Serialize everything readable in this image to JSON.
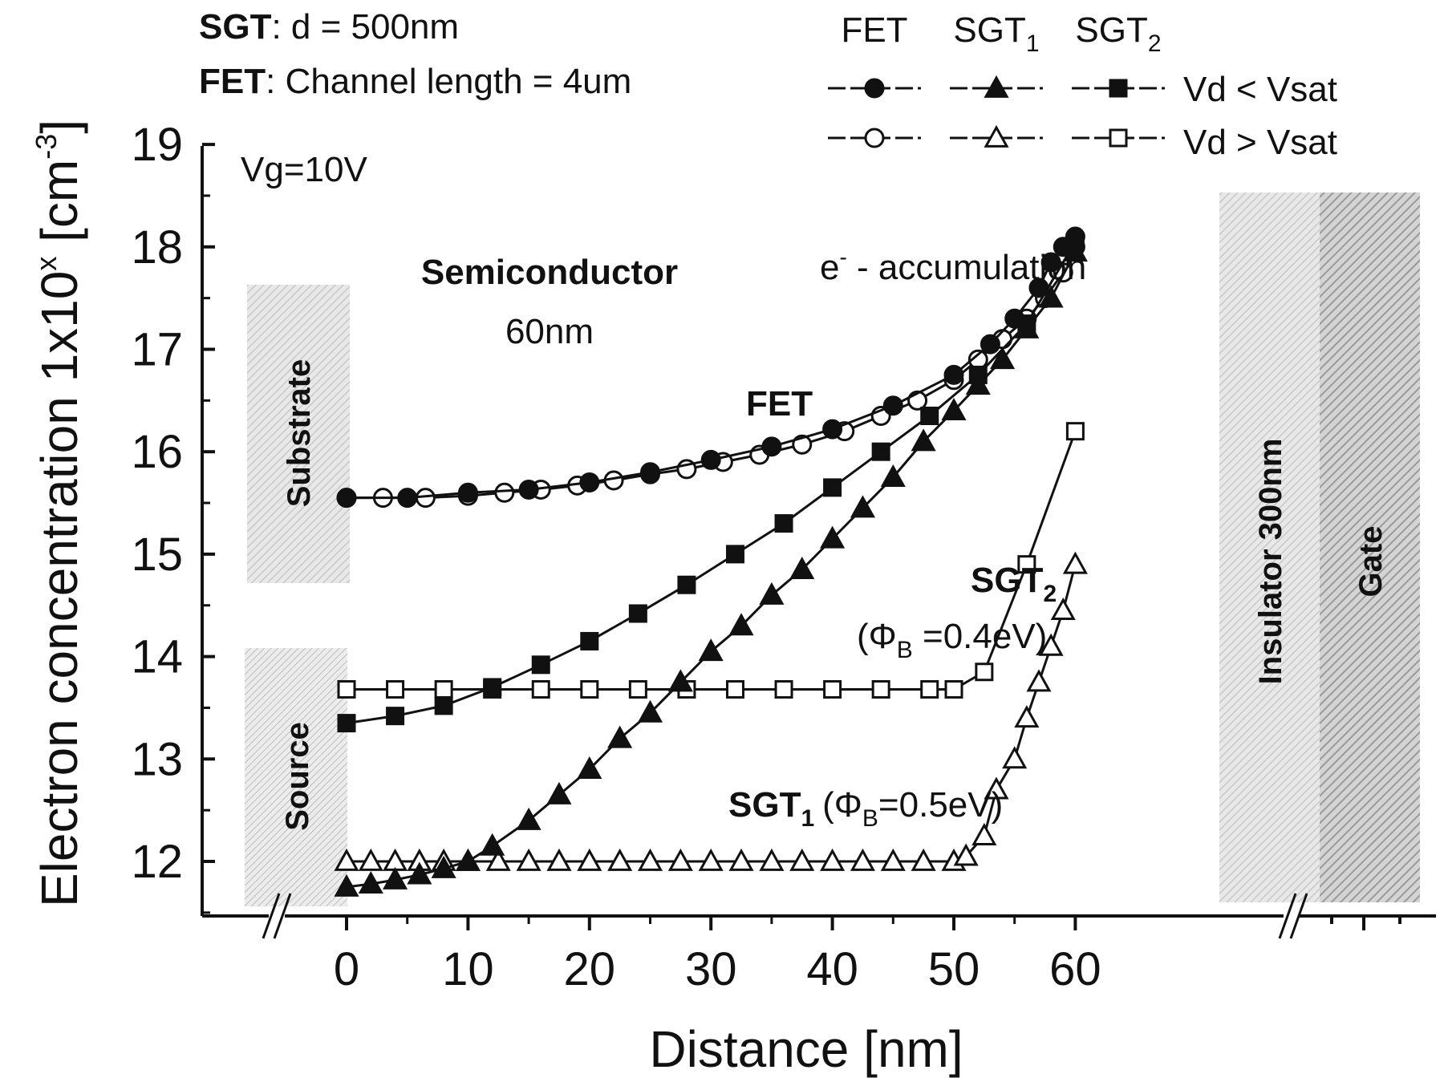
{
  "header": {
    "sgt_key": "SGT",
    "sgt_rest": ": d = 500nm",
    "fet_key": "FET",
    "fet_rest": ": Channel length = 4um"
  },
  "legend": {
    "columns": [
      {
        "name": "FET",
        "sub": ""
      },
      {
        "name": "SGT",
        "sub": "1"
      },
      {
        "name": "SGT",
        "sub": "2"
      }
    ],
    "rows": [
      "Vd < Vsat",
      "Vd > Vsat"
    ]
  },
  "annotations": {
    "vg": "Vg=10V",
    "semiconductor": "Semiconductor",
    "semiconductor_thickness": "60nm",
    "accumulation_prefix": "e",
    "accumulation_sup": "-",
    "accumulation_rest": " - accumulation",
    "fet": "FET",
    "sgt2_main": "SGT",
    "sgt2_sub": "2",
    "sgt2_phi_open": "(Φ",
    "sgt2_phi_sub": "B",
    "sgt2_phi_rest": " =0.4eV)",
    "sgt1_main": "SGT",
    "sgt1_sub": "1",
    "sgt1_phi_open": "(Φ",
    "sgt1_phi_sub": "B",
    "sgt1_phi_rest": "=0.5eV)"
  },
  "regions": {
    "substrate": "Substrate",
    "source": "Source",
    "insulator": "Insulator 300nm",
    "gate": "Gate"
  },
  "chart_data": {
    "type": "line",
    "xlabel": "Distance [nm]",
    "ylabel_main": "Electron concentration 1x10",
    "ylabel_sup": "x",
    "ylabel_unit_open": " [cm",
    "ylabel_unit_sup": "-3",
    "ylabel_unit_close": "]",
    "xlim": [
      -10,
      70
    ],
    "ylim": [
      11.5,
      19
    ],
    "x_ticks": [
      0,
      10,
      20,
      30,
      40,
      50,
      60
    ],
    "y_ticks": [
      12,
      13,
      14,
      15,
      16,
      17,
      18,
      19
    ],
    "x_axis_break": true,
    "grid": false,
    "legend_position": "top-right",
    "series": [
      {
        "name": "FET Vd < Vsat",
        "marker": "circle",
        "filled": true,
        "x": [
          0,
          5,
          10,
          15,
          20,
          25,
          30,
          35,
          40,
          45,
          50,
          53,
          55,
          57,
          58,
          59,
          60
        ],
        "y": [
          15.55,
          15.55,
          15.6,
          15.63,
          15.7,
          15.8,
          15.92,
          16.05,
          16.22,
          16.45,
          16.75,
          17.05,
          17.3,
          17.6,
          17.85,
          18.0,
          18.1
        ]
      },
      {
        "name": "FET Vd > Vsat",
        "marker": "circle",
        "filled": false,
        "x": [
          0,
          3,
          6.5,
          10,
          13,
          16,
          19,
          22,
          25,
          28,
          31,
          34,
          37.5,
          41,
          44,
          47,
          50,
          52,
          54,
          56,
          57.5,
          59,
          60
        ],
        "y": [
          15.55,
          15.55,
          15.55,
          15.57,
          15.6,
          15.63,
          15.67,
          15.72,
          15.78,
          15.83,
          15.9,
          15.97,
          16.07,
          16.2,
          16.35,
          16.5,
          16.7,
          16.9,
          17.1,
          17.3,
          17.5,
          17.75,
          18.0
        ]
      },
      {
        "name": "SGT1 Vd < Vsat",
        "marker": "triangle",
        "filled": true,
        "x": [
          0,
          2,
          4,
          6,
          8,
          10,
          12,
          15,
          17.5,
          20,
          22.5,
          25,
          27.5,
          30,
          32.5,
          35,
          37.5,
          40,
          42.5,
          45,
          47.5,
          50,
          52,
          54,
          56,
          58,
          60
        ],
        "y": [
          11.75,
          11.78,
          11.82,
          11.87,
          11.93,
          12.0,
          12.15,
          12.4,
          12.65,
          12.9,
          13.2,
          13.45,
          13.75,
          14.05,
          14.3,
          14.6,
          14.85,
          15.15,
          15.45,
          15.75,
          16.1,
          16.4,
          16.65,
          16.9,
          17.2,
          17.5,
          17.95
        ]
      },
      {
        "name": "SGT1 Vd > Vsat",
        "marker": "triangle",
        "filled": false,
        "x": [
          0,
          2,
          4,
          6,
          8,
          10,
          12.5,
          15,
          17.5,
          20,
          22.5,
          25,
          27.5,
          30,
          32.5,
          35,
          37.5,
          40,
          42.5,
          45,
          47.5,
          50,
          51,
          52.5,
          53.5,
          55,
          56,
          57,
          58,
          59,
          60
        ],
        "y": [
          12.0,
          12.0,
          12.0,
          12.0,
          12.0,
          12.0,
          12.0,
          12.0,
          12.0,
          12.0,
          12.0,
          12.0,
          12.0,
          12.0,
          12.0,
          12.0,
          12.0,
          12.0,
          12.0,
          12.0,
          12.0,
          12.0,
          12.05,
          12.25,
          12.7,
          13.0,
          13.4,
          13.75,
          14.1,
          14.45,
          14.9
        ]
      },
      {
        "name": "SGT2 Vd < Vsat",
        "marker": "square",
        "filled": true,
        "x": [
          0,
          4,
          8,
          12,
          16,
          20,
          24,
          28,
          32,
          36,
          40,
          44,
          48,
          52,
          56,
          60
        ],
        "y": [
          13.35,
          13.42,
          13.52,
          13.7,
          13.92,
          14.15,
          14.42,
          14.7,
          15.0,
          15.3,
          15.65,
          16.0,
          16.35,
          16.75,
          17.25,
          18.05
        ]
      },
      {
        "name": "SGT2 Vd > Vsat",
        "marker": "square",
        "filled": false,
        "x": [
          0,
          4,
          8,
          12,
          16,
          20,
          24,
          28,
          32,
          36,
          40,
          44,
          48,
          50,
          52.5,
          56,
          60
        ],
        "y": [
          13.68,
          13.68,
          13.68,
          13.68,
          13.68,
          13.68,
          13.68,
          13.68,
          13.68,
          13.68,
          13.68,
          13.68,
          13.68,
          13.68,
          13.85,
          14.9,
          16.2
        ]
      }
    ]
  }
}
